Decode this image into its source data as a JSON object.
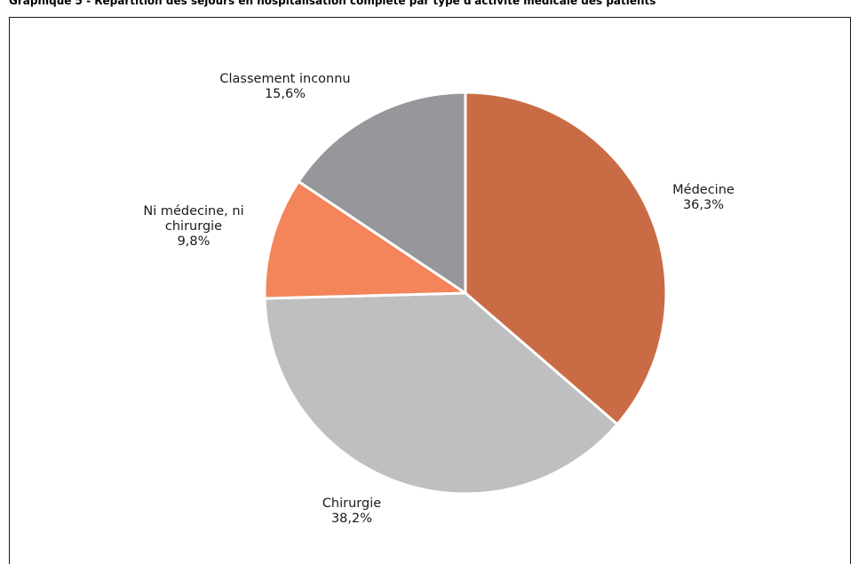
{
  "title": "Graphique 5 - Répartition des séjours en hospitalisation complète par type d'activité médicale des patients",
  "chart_data": {
    "type": "pie",
    "slices": [
      {
        "label": "Médecine",
        "label_lines": [
          "Médecine"
        ],
        "value": 36.3,
        "value_text": "36,3%",
        "color": "#c96c46"
      },
      {
        "label": "Chirurgie",
        "label_lines": [
          "Chirurgie"
        ],
        "value": 38.2,
        "value_text": "38,2%",
        "color": "#bebfc1"
      },
      {
        "label": "Ni médecine, ni chirurgie",
        "label_lines": [
          "Ni médecine, ni",
          "chirurgie"
        ],
        "value": 9.8,
        "value_text": "9,8%",
        "color": "#f4845a"
      },
      {
        "label": "Classement inconnu",
        "label_lines": [
          "Classement inconnu"
        ],
        "value": 15.6,
        "value_text": "15,6%",
        "color": "#96979b"
      }
    ],
    "start": "12 o'clock",
    "direction": "clockwise",
    "legend": "none (labels on chart)"
  }
}
